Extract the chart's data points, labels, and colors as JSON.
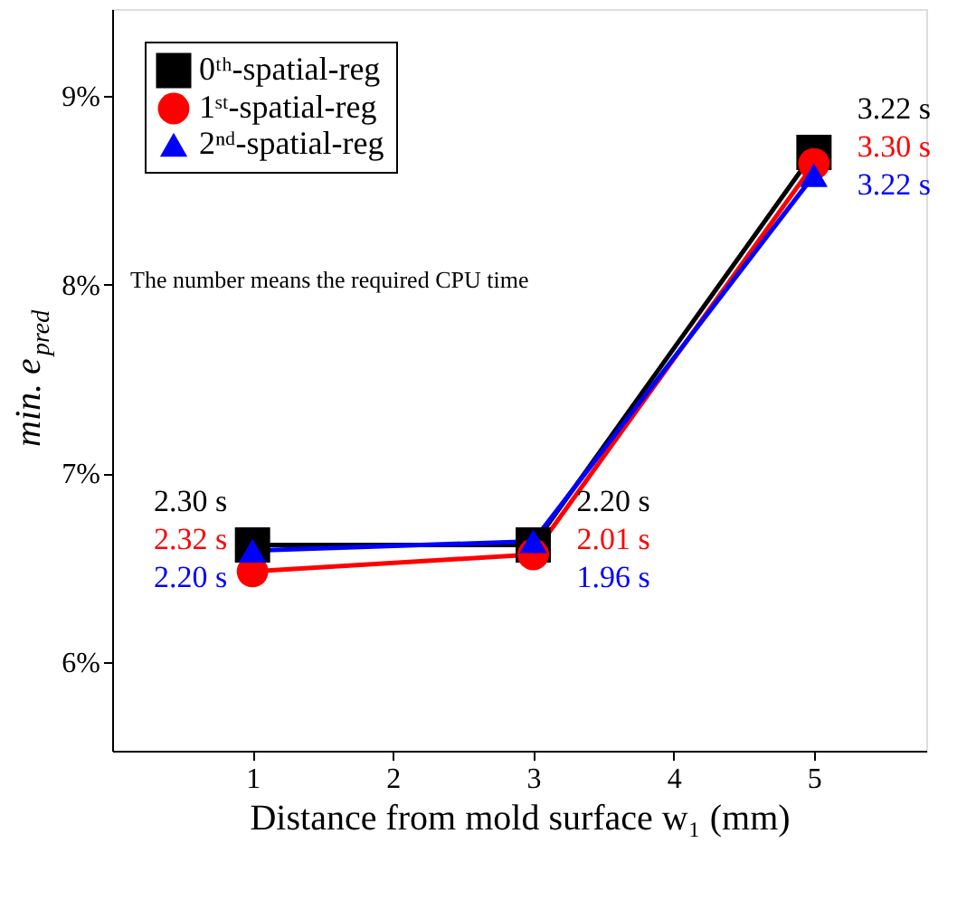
{
  "chart_data": {
    "type": "line",
    "xlabel": "Distance from mold surface w₁ (mm)",
    "ylabel": "min. e$_{pred}$",
    "x": [
      1,
      3,
      5
    ],
    "xlim": [
      0,
      5.8
    ],
    "xticks": [
      1,
      2,
      3,
      4,
      5
    ],
    "ylim": [
      5.53,
      9.46
    ],
    "yticks": [
      {
        "value": 6,
        "label": "6%"
      },
      {
        "value": 7,
        "label": "7%"
      },
      {
        "value": 8,
        "label": "8%"
      },
      {
        "value": 9,
        "label": "9%"
      }
    ],
    "series": [
      {
        "name": "0ᵗʰ-spatial-reg",
        "color": "#000000",
        "marker": "square",
        "values": [
          6.62,
          6.62,
          8.7
        ]
      },
      {
        "name": "1ˢᵗ-spatial-reg",
        "color": "#ff0000",
        "marker": "circle",
        "values": [
          6.48,
          6.57,
          8.64
        ]
      },
      {
        "name": "2ⁿᵈ-spatial-reg",
        "color": "#0000ff",
        "marker": "triangle",
        "values": [
          6.59,
          6.64,
          8.58
        ]
      }
    ],
    "annotations": [
      "The number means the required CPU time",
      {
        "text": "2.30 s",
        "x": 1,
        "y": 6.62
      },
      {
        "text": "2.20 s",
        "x": 3,
        "y": 6.62
      },
      {
        "text": "3.22 s",
        "x": 5,
        "y": 8.7
      },
      {
        "text": "2.32 s",
        "x": 1,
        "y": 6.48
      },
      {
        "text": "2.01 s",
        "x": 3,
        "y": 6.57
      },
      {
        "text": "3.30 s",
        "x": 5,
        "y": 8.64
      },
      {
        "text": "2.20 s",
        "x": 1,
        "y": 6.59
      },
      {
        "text": "1.96 s",
        "x": 3,
        "y": 6.64
      },
      {
        "text": "3.22 s",
        "x": 5,
        "y": 8.58
      }
    ],
    "legend": "top left",
    "grid": false
  }
}
